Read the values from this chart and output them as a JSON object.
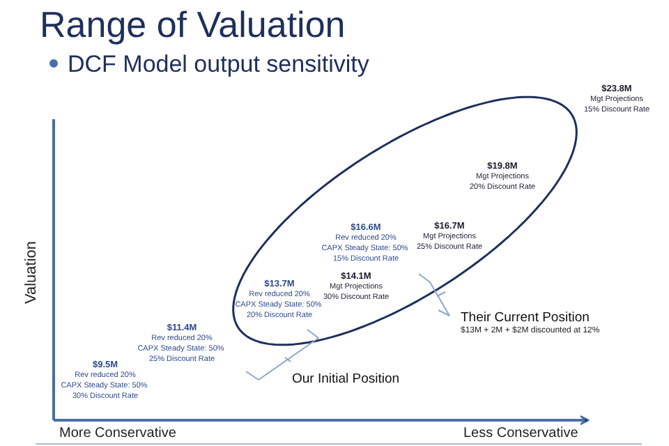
{
  "chart_data": {
    "type": "other",
    "title": "Range of Valuation",
    "subtitle": "DCF Model output sensitivity",
    "ylabel": "Valuation",
    "categories": [
      "Rev reduced 20%\nCAPX Steady State:  50%\n30% Discount Rate",
      "Rev reduced 20%\nCAPX Steady State:  50%\n25% Discount Rate",
      "Rev reduced 20%\nCAPX Steady State:  50%\n20% Discount Rate",
      "Mgt Projections\n30% Discount Rate",
      "Rev reduced 20%\nCAPX Steady State:  50%\n15% Discount Rate",
      "Mgt Projections\n25% Discount Rate",
      "Mgt Projections\n20% Discount Rate",
      "Mgt Projections\n15% Discount Rate"
    ],
    "values": [
      9.5,
      11.4,
      13.7,
      14.1,
      16.6,
      16.7,
      19.8,
      23.8
    ],
    "value_labels": [
      "$9.5M",
      "$11.4M",
      "$13.7M",
      "$14.1M",
      "$16.6M",
      "$16.7M",
      "$19.8M",
      "$23.8M"
    ],
    "colors": [
      "#2e4a8c",
      "#2e4a8c",
      "#2e4a8c",
      "#1a1a2e",
      "#2e4a8c",
      "#1a1a2e",
      "#1a1a2e",
      "#1a1a2e"
    ],
    "annotations": [
      "Our Initial Position",
      "Their Current Position",
      "$13M + 2M + $2M discounted at 12%",
      "More Conservative",
      "Less Conservative"
    ]
  }
}
